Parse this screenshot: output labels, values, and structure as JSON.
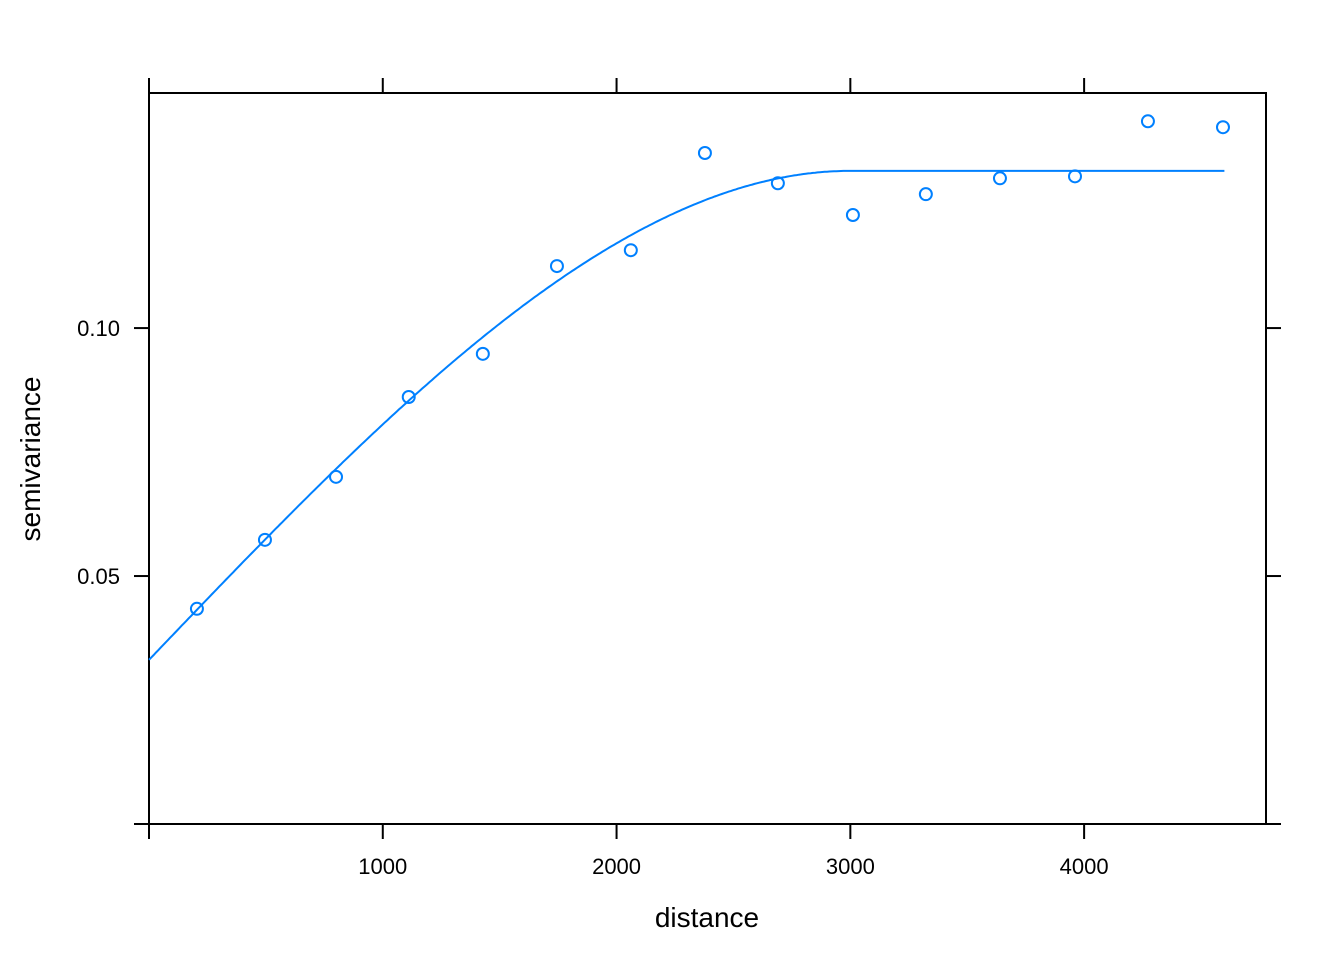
{
  "chart_data": {
    "type": "scatter",
    "title": "",
    "xlabel": "distance",
    "ylabel": "semivariance",
    "xlim": [
      0,
      4778
    ],
    "ylim": [
      0,
      0.1474
    ],
    "grid": false,
    "x_ticks": [
      0,
      1000,
      2000,
      3000,
      4000
    ],
    "x_tick_labels": [
      "",
      "1000",
      "2000",
      "3000",
      "4000"
    ],
    "y_ticks": [
      0,
      0.05,
      0.1
    ],
    "y_tick_labels": [
      "",
      "0.05",
      "0.10"
    ],
    "color": "#0080ff",
    "points": {
      "x": [
        205,
        496,
        800,
        1111,
        1428,
        1745,
        2061,
        2378,
        2690,
        3011,
        3323,
        3640,
        3961,
        4273,
        4594
      ],
      "y": [
        0.0434,
        0.0573,
        0.07,
        0.0861,
        0.0948,
        0.1125,
        0.1157,
        0.1353,
        0.1292,
        0.1228,
        0.127,
        0.1302,
        0.1306,
        0.1417,
        0.1405
      ]
    },
    "fitted_model": {
      "model": "spherical",
      "nugget": 0.0331,
      "partial_sill": 0.0986,
      "range": 3000,
      "x_max": 4600
    }
  }
}
